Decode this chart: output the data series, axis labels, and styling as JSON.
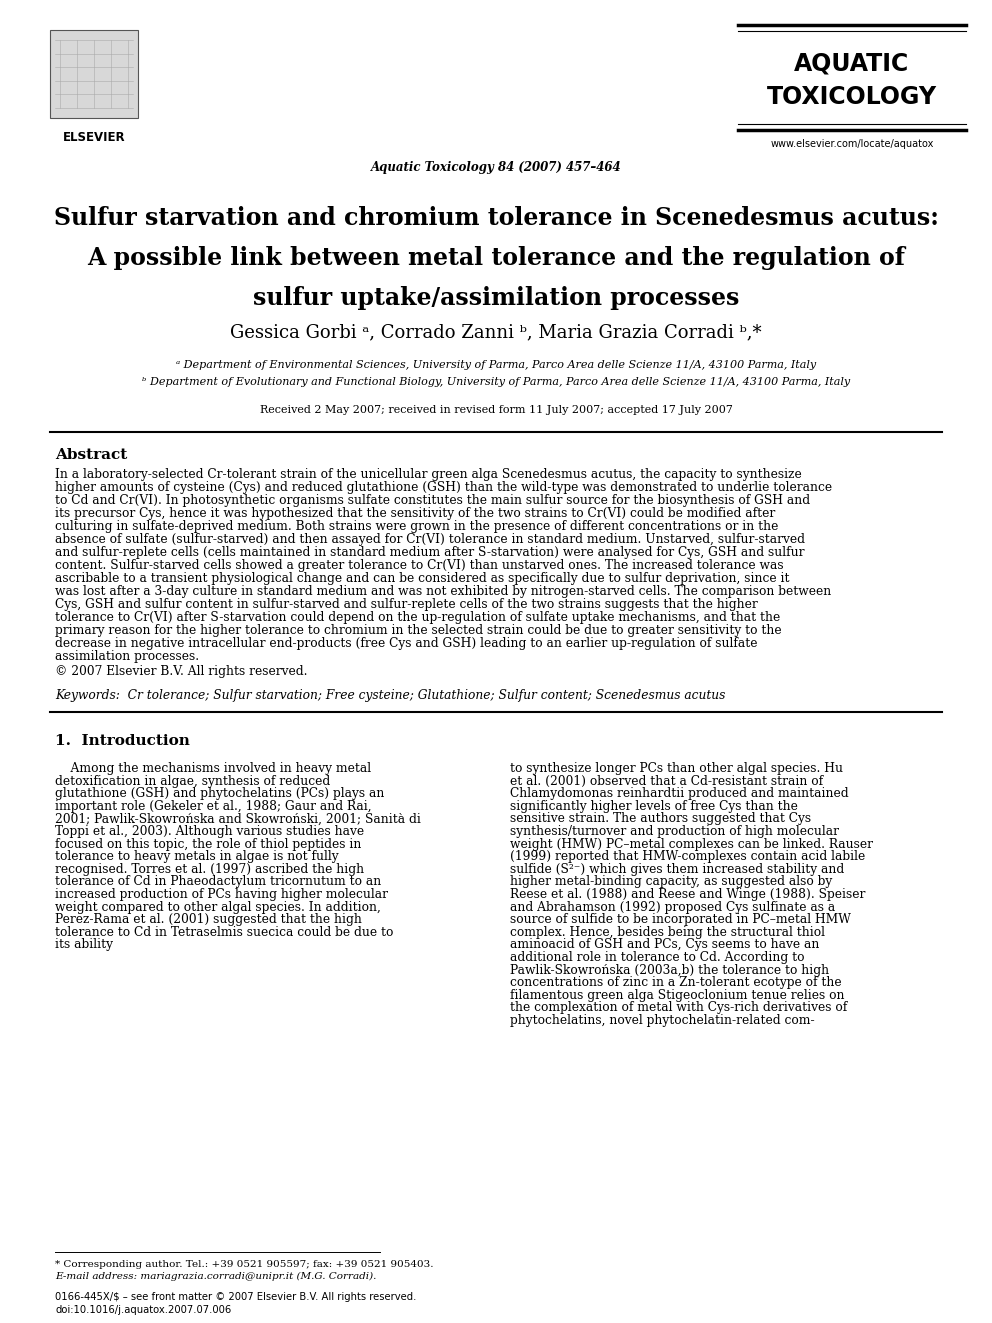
{
  "title_line1": "Sulfur starvation and chromium tolerance in ",
  "title_italic": "Scenedesmus acutus",
  "title_line1_end": ":",
  "title_line2": "A possible link between metal tolerance and the regulation of",
  "title_line3": "sulfur uptake/assimilation processes",
  "authors": "Gessica Gorbi ᵃ, Corrado Zanni ᵇ, Maria Grazia Corradi ᵇ,*",
  "affiliation_a": "ᵃ Department of Environmental Sciences, University of Parma, Parco Area delle Scienze 11/A, 43100 Parma, Italy",
  "affiliation_b": "ᵇ Department of Evolutionary and Functional Biology, University of Parma, Parco Area delle Scienze 11/A, 43100 Parma, Italy",
  "received": "Received 2 May 2007; received in revised form 11 July 2007; accepted 17 July 2007",
  "journal_header": "Aquatic Toxicology 84 (2007) 457–464",
  "journal_name_line1": "AQUATIC",
  "journal_name_line2": "TOXICOLOGY",
  "website": "www.elsevier.com/locate/aquatox",
  "abstract_title": "Abstract",
  "abstract_text": "In a laboratory-selected Cr-tolerant strain of the unicellular green alga Scenedesmus acutus, the capacity to synthesize higher amounts of cysteine (Cys) and reduced glutathione (GSH) than the wild-type was demonstrated to underlie tolerance to Cd and Cr(VI). In photosynthetic organisms sulfate constitutes the main sulfur source for the biosynthesis of GSH and its precursor Cys, hence it was hypothesized that the sensitivity of the two strains to Cr(VI) could be modified after culturing in sulfate-deprived medium. Both strains were grown in the presence of different concentrations or in the absence of sulfate (sulfur-starved) and then assayed for Cr(VI) tolerance in standard medium. Unstarved, sulfur-starved and sulfur-replete cells (cells maintained in standard medium after S-starvation) were analysed for Cys, GSH and sulfur content. Sulfur-starved cells showed a greater tolerance to Cr(VI) than unstarved ones. The increased tolerance was ascribable to a transient physiological change and can be considered as specifically due to sulfur deprivation, since it was lost after a 3-day culture in standard medium and was not exhibited by nitrogen-starved cells. The comparison between Cys, GSH and sulfur content in sulfur-starved and sulfur-replete cells of the two strains suggests that the higher tolerance to Cr(VI) after S-starvation could depend on the up-regulation of sulfate uptake mechanisms, and that the primary reason for the higher tolerance to chromium in the selected strain could be due to greater sensitivity to the decrease in negative intracellular end-products (free Cys and GSH) leading to an earlier up-regulation of sulfate assimilation processes.",
  "copyright": "© 2007 Elsevier B.V. All rights reserved.",
  "keywords": "Keywords:  Cr tolerance; Sulfur starvation; Free cysteine; Glutathione; Sulfur content; Scenedesmus acutus",
  "section1_title": "1.  Introduction",
  "intro_left": "Among the mechanisms involved in heavy metal detoxification in algae, synthesis of reduced glutathione (GSH) and phytochelatins (PCs) plays an important role (Gekeler et al., 1988; Gaur and Rai, 2001; Pawlik-Skowrońska and Skowroński, 2001; Sanità di Toppi et al., 2003). Although various studies have focused on this topic, the role of thiol peptides in tolerance to heavy metals in algae is not fully recognised. Torres et al. (1997) ascribed the high tolerance of Cd in Phaeodactylum tricornutum to an increased production of PCs having higher molecular weight compared to other algal species. In addition, Perez-Rama et al. (2001) suggested that the high tolerance to Cd in Tetraselmis suecica could be due to its ability",
  "intro_right": "to synthesize longer PCs than other algal species. Hu et al. (2001) observed that a Cd-resistant strain of Chlamydomonas reinhardtii produced and maintained significantly higher levels of free Cys than the sensitive strain. The authors suggested that Cys synthesis/turnover and production of high molecular weight (HMW) PC–metal complexes can be linked. Rauser (1999) reported that HMW-complexes contain acid labile sulfide (S²⁻) which gives them increased stability and higher metal-binding capacity, as suggested also by Reese et al. (1988) and Reese and Winge (1988). Speiser and Abrahamson (1992) proposed Cys sulfinate as a source of sulfide to be incorporated in PC–metal HMW complex. Hence, besides being the structural thiol aminoacid of GSH and PCs, Cys seems to have an additional role in tolerance to Cd. According to Pawlik-Skowrońska (2003a,b) the tolerance to high concentrations of zinc in a Zn-tolerant ecotype of the filamentous green alga Stigeoclonium tenue relies on the complexation of metal with Cys-rich derivatives of phytochelatins, novel phytochelatin-related com-",
  "footnote_star": "* Corresponding author. Tel.: +39 0521 905597; fax: +39 0521 905403.",
  "footnote_email": "E-mail address: mariagrazia.corradi@unipr.it (M.G. Corradi).",
  "bottom_issn": "0166-445X/$ – see front matter © 2007 Elsevier B.V. All rights reserved.",
  "bottom_doi": "doi:10.1016/j.aquatox.2007.07.006",
  "bg_color": "#ffffff",
  "text_color": "#000000",
  "link_color": "#0000cc"
}
